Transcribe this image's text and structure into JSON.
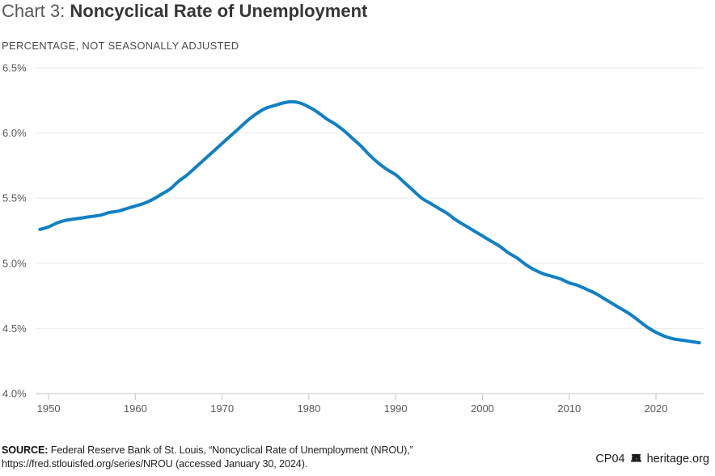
{
  "title": {
    "prefix": "Chart 3: ",
    "main": "Noncyclical Rate of Unemployment"
  },
  "subtitle": "PERCENTAGE, NOT SEASONALLY ADJUSTED",
  "source": {
    "label": "SOURCE:",
    "line1": " Federal Reserve Bank of St. Louis, “Noncyclical Rate of Unemployment (NROU),”",
    "line2": "https://fred.stlouisfed.org/series/NROU (accessed January 30, 2024)."
  },
  "footer": {
    "chart_code": "CP04",
    "site": "heritage.org",
    "bell_icon": "liberty-bell-icon"
  },
  "colors": {
    "line": "#1080c5",
    "grid": "#e9e9e9",
    "axis": "#c6c6c6",
    "tick_label": "#58585a",
    "background": "#ffffff"
  },
  "chart_data": {
    "type": "line",
    "title": "Chart 3: Noncyclical Rate of Unemployment",
    "xlabel": "",
    "ylabel": "Percentage, not seasonally adjusted",
    "xlim": [
      1948.5,
      2025.5
    ],
    "ylim": [
      4.0,
      6.5
    ],
    "grid": "horizontal",
    "legend": "none",
    "yticks": [
      {
        "value": 4.0,
        "label": "4.0%"
      },
      {
        "value": 4.5,
        "label": "4.5%"
      },
      {
        "value": 5.0,
        "label": "5.0%"
      },
      {
        "value": 5.5,
        "label": "5.5%"
      },
      {
        "value": 6.0,
        "label": "6.0%"
      },
      {
        "value": 6.5,
        "label": "6.5%"
      }
    ],
    "xticks": [
      {
        "value": 1950,
        "label": "1950"
      },
      {
        "value": 1960,
        "label": "1960"
      },
      {
        "value": 1970,
        "label": "1970"
      },
      {
        "value": 1980,
        "label": "1980"
      },
      {
        "value": 1990,
        "label": "1990"
      },
      {
        "value": 2000,
        "label": "2000"
      },
      {
        "value": 2010,
        "label": "2010"
      },
      {
        "value": 2020,
        "label": "2020"
      }
    ],
    "series": [
      {
        "name": "Noncyclical Rate of Unemployment (NROU)",
        "points": [
          [
            1949,
            5.26
          ],
          [
            1950,
            5.28
          ],
          [
            1951,
            5.31
          ],
          [
            1952,
            5.33
          ],
          [
            1953,
            5.34
          ],
          [
            1954,
            5.35
          ],
          [
            1955,
            5.36
          ],
          [
            1956,
            5.37
          ],
          [
            1957,
            5.39
          ],
          [
            1958,
            5.4
          ],
          [
            1959,
            5.42
          ],
          [
            1960,
            5.44
          ],
          [
            1961,
            5.46
          ],
          [
            1962,
            5.49
          ],
          [
            1963,
            5.53
          ],
          [
            1964,
            5.57
          ],
          [
            1965,
            5.63
          ],
          [
            1966,
            5.68
          ],
          [
            1967,
            5.74
          ],
          [
            1968,
            5.8
          ],
          [
            1969,
            5.86
          ],
          [
            1970,
            5.92
          ],
          [
            1971,
            5.98
          ],
          [
            1972,
            6.04
          ],
          [
            1973,
            6.1
          ],
          [
            1974,
            6.15
          ],
          [
            1975,
            6.19
          ],
          [
            1976,
            6.21
          ],
          [
            1977,
            6.23
          ],
          [
            1978,
            6.24
          ],
          [
            1979,
            6.23
          ],
          [
            1980,
            6.2
          ],
          [
            1981,
            6.16
          ],
          [
            1982,
            6.11
          ],
          [
            1983,
            6.07
          ],
          [
            1984,
            6.02
          ],
          [
            1985,
            5.96
          ],
          [
            1986,
            5.9
          ],
          [
            1987,
            5.83
          ],
          [
            1988,
            5.77
          ],
          [
            1989,
            5.72
          ],
          [
            1990,
            5.68
          ],
          [
            1991,
            5.62
          ],
          [
            1992,
            5.56
          ],
          [
            1993,
            5.5
          ],
          [
            1994,
            5.46
          ],
          [
            1995,
            5.42
          ],
          [
            1996,
            5.38
          ],
          [
            1997,
            5.33
          ],
          [
            1998,
            5.29
          ],
          [
            1999,
            5.25
          ],
          [
            2000,
            5.21
          ],
          [
            2001,
            5.17
          ],
          [
            2002,
            5.13
          ],
          [
            2003,
            5.08
          ],
          [
            2004,
            5.04
          ],
          [
            2005,
            4.99
          ],
          [
            2006,
            4.95
          ],
          [
            2007,
            4.92
          ],
          [
            2008,
            4.9
          ],
          [
            2009,
            4.88
          ],
          [
            2010,
            4.85
          ],
          [
            2011,
            4.83
          ],
          [
            2012,
            4.8
          ],
          [
            2013,
            4.77
          ],
          [
            2014,
            4.73
          ],
          [
            2015,
            4.69
          ],
          [
            2016,
            4.65
          ],
          [
            2017,
            4.61
          ],
          [
            2018,
            4.56
          ],
          [
            2019,
            4.51
          ],
          [
            2020,
            4.47
          ],
          [
            2021,
            4.44
          ],
          [
            2022,
            4.42
          ],
          [
            2023,
            4.41
          ],
          [
            2024,
            4.4
          ],
          [
            2025,
            4.39
          ]
        ]
      }
    ]
  }
}
